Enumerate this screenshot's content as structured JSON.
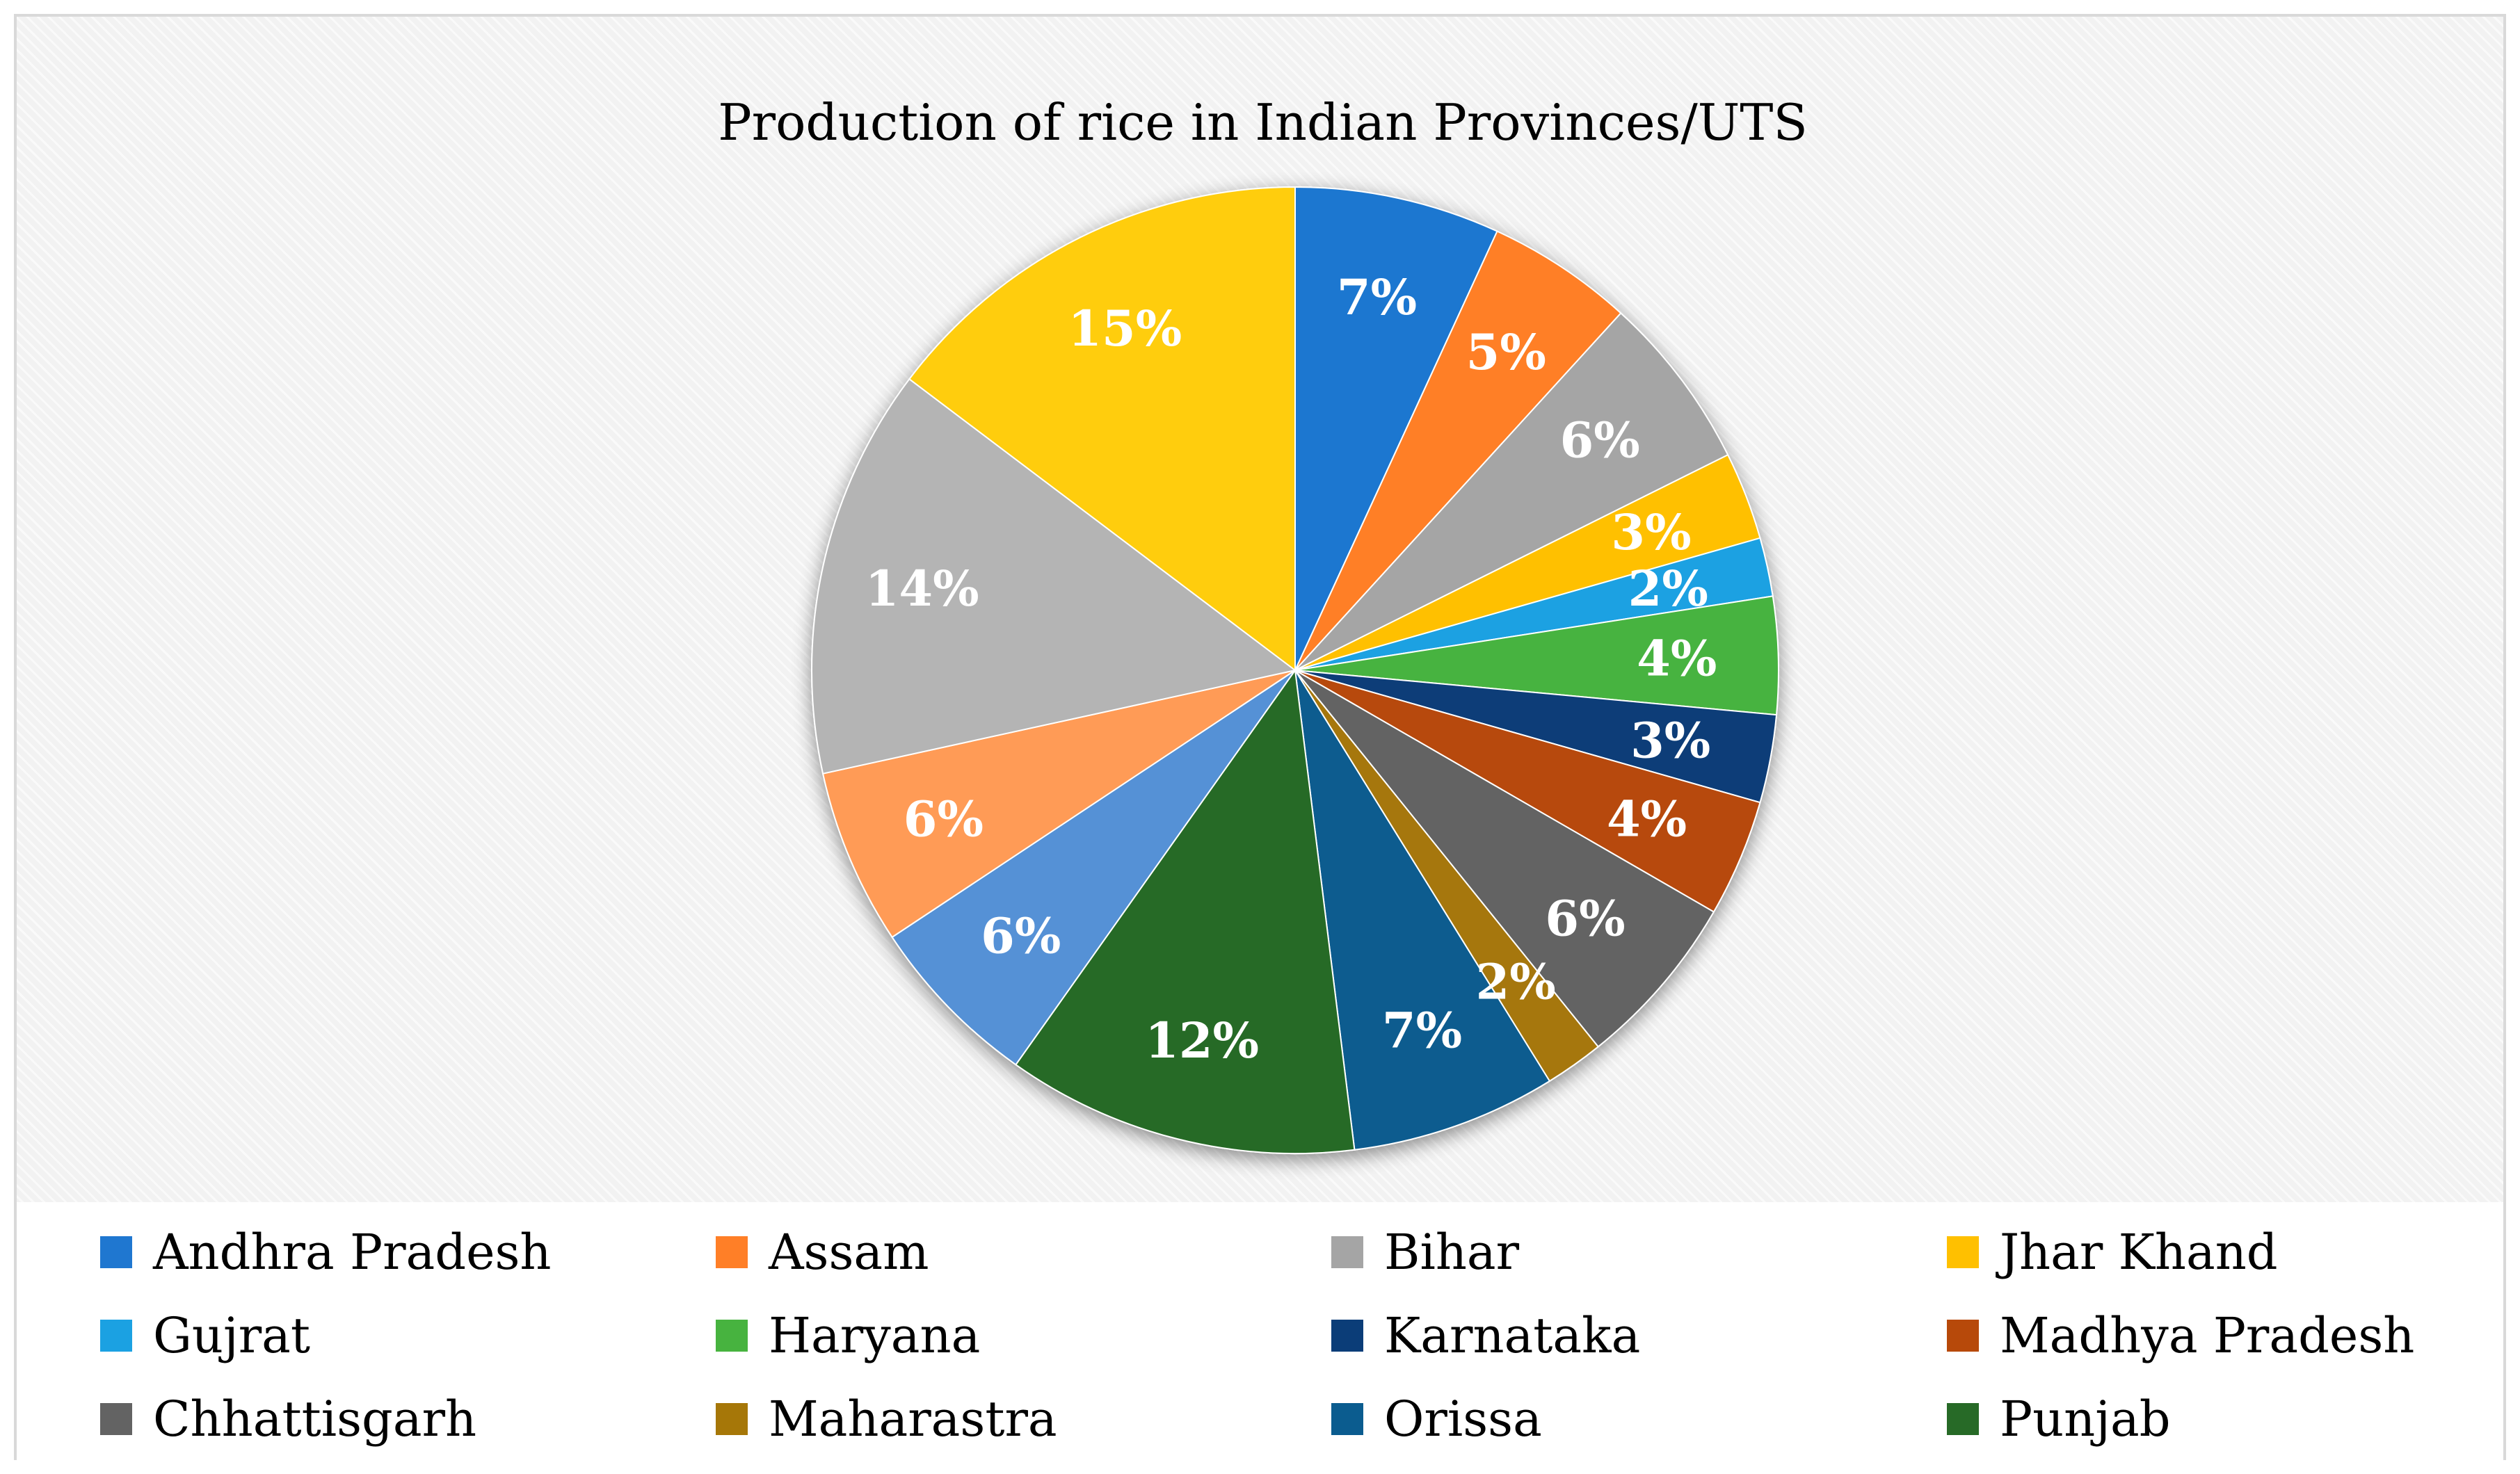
{
  "chart_data": {
    "type": "pie",
    "title": "Production of rice in Indian Provinces/UTS",
    "start_angle_deg": 0,
    "direction": "clockwise",
    "legend_position": "bottom",
    "slices": [
      {
        "name": "Andhra Pradesh",
        "value": 7,
        "label": "7%",
        "color": "#1f77d0"
      },
      {
        "name": "Assam",
        "value": 5,
        "label": "5%",
        "color": "#ff7f27"
      },
      {
        "name": "Bihar",
        "value": 6,
        "label": "6%",
        "color": "#a5a5a5"
      },
      {
        "name": "Jhar Khand",
        "value": 3,
        "label": "3%",
        "color": "#ffc000"
      },
      {
        "name": "Gujrat",
        "value": 2,
        "label": "2%",
        "color": "#1ba1e2"
      },
      {
        "name": "Haryana",
        "value": 4,
        "label": "4%",
        "color": "#47b33f"
      },
      {
        "name": "Karnataka",
        "value": 3,
        "label": "3%",
        "color": "#0b3d78"
      },
      {
        "name": "Madhya Pradesh",
        "value": 4,
        "label": "4%",
        "color": "#b7490a"
      },
      {
        "name": "Chhattisgarh",
        "value": 6,
        "label": "6%",
        "color": "#636363"
      },
      {
        "name": "Maharastra",
        "value": 2,
        "label": "2%",
        "color": "#a67708"
      },
      {
        "name": "Orissa",
        "value": 7,
        "label": "7%",
        "color": "#0b5c8f"
      },
      {
        "name": "Punjab",
        "value": 12,
        "label": "12%",
        "color": "#276a27"
      },
      {
        "name": "",
        "value": 6,
        "label": "6%",
        "color": "#5591d6"
      },
      {
        "name": "",
        "value": 6,
        "label": "6%",
        "color": "#ff9b57"
      },
      {
        "name": "",
        "value": 14,
        "label": "14%",
        "color": "#b4b4b4"
      },
      {
        "name": "",
        "value": 15,
        "label": "15%",
        "color": "#ffcd10"
      }
    ]
  }
}
